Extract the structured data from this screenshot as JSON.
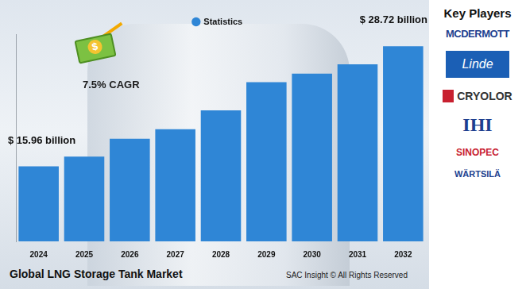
{
  "chart_data": {
    "type": "bar",
    "title": "Global LNG Storage Tank Market",
    "categories": [
      "2024",
      "2025",
      "2026",
      "2027",
      "2028",
      "2029",
      "2030",
      "2031",
      "2032"
    ],
    "series": [
      {
        "name": "Statistics",
        "color": "#2f86d6",
        "values": [
          15.96,
          17.0,
          18.9,
          19.9,
          21.9,
          24.9,
          25.8,
          26.8,
          28.72
        ]
      }
    ],
    "value_labels": [
      "$ 15.96 billion",
      null,
      null,
      null,
      null,
      null,
      null,
      null,
      "$ 28.72 billion"
    ],
    "ylim": [
      8,
      30
    ],
    "yticks": [
      8,
      30
    ],
    "tick_labels": "x",
    "grid": false,
    "legend": "top",
    "annotations": [
      "7.5% CAGR"
    ]
  },
  "key_players": {
    "title": "Key Players",
    "companies": [
      "MCDERMOTT",
      "Linde",
      "CRYOLOR",
      "IHI",
      "SINOPEC",
      "WÄRTSILÄ"
    ]
  },
  "source": "SAC Insight © All Rights Reserved"
}
